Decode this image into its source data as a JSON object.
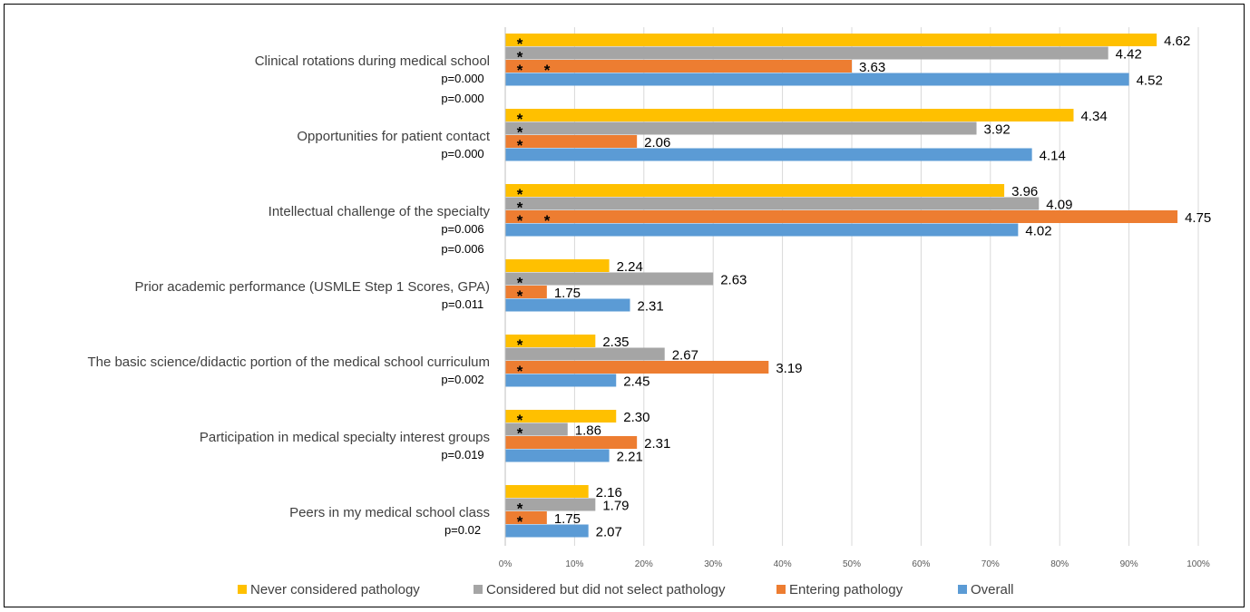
{
  "chart_data": {
    "type": "bar",
    "orientation": "horizontal",
    "x_ticks": [
      "0%",
      "10%",
      "20%",
      "30%",
      "40%",
      "50%",
      "60%",
      "70%",
      "80%",
      "90%",
      "100%"
    ],
    "xlim": [
      0,
      100
    ],
    "grid": true,
    "legend_position": "bottom",
    "categories": [
      {
        "label": "Clinical rotations during medical school",
        "p_values": [
          "p=0.000",
          "p=0.000"
        ]
      },
      {
        "label": "Opportunities for patient contact",
        "p_values": [
          "p=0.000"
        ]
      },
      {
        "label": "Intellectual challenge of the specialty",
        "p_values": [
          "p=0.006",
          "p=0.006"
        ]
      },
      {
        "label": "Prior academic performance (USMLE Step 1 Scores, GPA)",
        "p_values": [
          "p=0.011"
        ]
      },
      {
        "label": "The basic science/didactic portion of the medical school curriculum",
        "p_values": [
          "p=0.002"
        ]
      },
      {
        "label": "Participation in medical specialty interest groups",
        "p_values": [
          "p=0.019"
        ]
      },
      {
        "label": "Peers in my medical school class",
        "p_values": [
          "p=0.02"
        ]
      }
    ],
    "series": [
      {
        "name": "Never considered pathology",
        "color": "#FFC000",
        "percent": [
          94,
          82,
          72,
          15,
          13,
          16,
          12
        ],
        "labels": [
          "4.62",
          "4.34",
          "3.96",
          "2.24",
          "2.35",
          "2.30",
          "2.16"
        ],
        "stars": [
          1,
          1,
          1,
          0,
          1,
          1,
          0
        ]
      },
      {
        "name": "Considered but did not select pathology",
        "color": "#A5A5A5",
        "percent": [
          87,
          68,
          77,
          30,
          23,
          9,
          13
        ],
        "labels": [
          "4.42",
          "3.92",
          "4.09",
          "2.63",
          "2.67",
          "1.86",
          "1.79"
        ],
        "stars": [
          1,
          1,
          1,
          1,
          0,
          1,
          1
        ]
      },
      {
        "name": "Entering pathology",
        "color": "#ED7D31",
        "percent": [
          50,
          19,
          97,
          6,
          38,
          19,
          6
        ],
        "labels": [
          "3.63",
          "2.06",
          "4.75",
          "1.75",
          "3.19",
          "2.31",
          "1.75"
        ],
        "stars": [
          2,
          1,
          2,
          1,
          1,
          0,
          1
        ]
      },
      {
        "name": "Overall",
        "color": "#5B9BD5",
        "percent": [
          90,
          76,
          74,
          18,
          16,
          15,
          12
        ],
        "labels": [
          "4.52",
          "4.14",
          "4.02",
          "2.31",
          "2.45",
          "2.21",
          "2.07"
        ],
        "stars": [
          0,
          0,
          0,
          0,
          0,
          0,
          0
        ]
      }
    ],
    "star_symbol": "*"
  }
}
